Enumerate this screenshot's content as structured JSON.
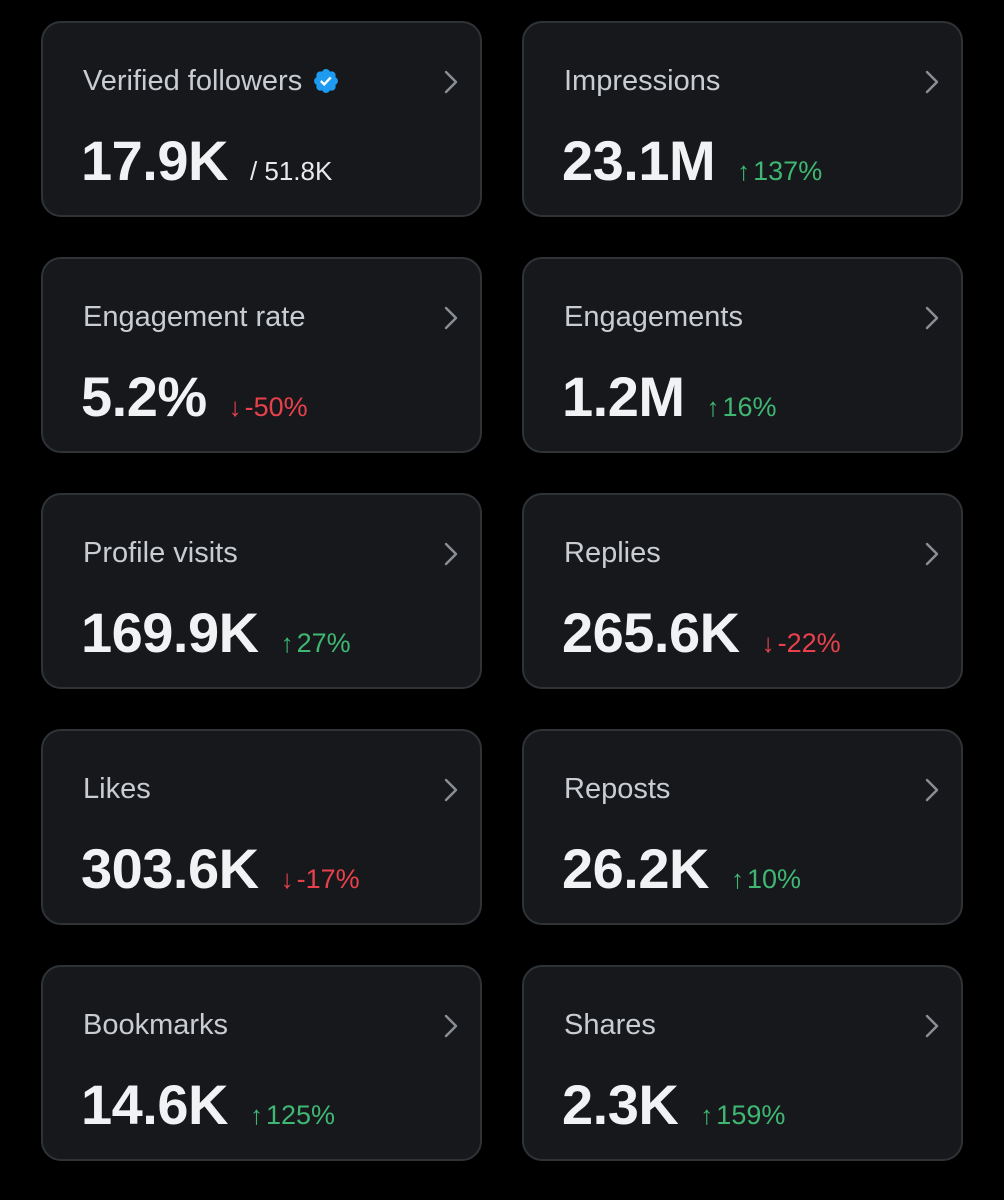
{
  "colors": {
    "background": "#000000",
    "card": "#16181c",
    "border": "#2f3336",
    "positive": "#3fb772",
    "negative": "#e8414b",
    "verified": "#1d9bf0"
  },
  "cards": [
    {
      "title": "Verified followers",
      "value": "17.9K",
      "total": "/ 51.8K",
      "verified": true
    },
    {
      "title": "Impressions",
      "value": "23.1M",
      "change": "137%",
      "direction": "up",
      "arrow": "↑"
    },
    {
      "title": "Engagement rate",
      "value": "5.2%",
      "change": "-50%",
      "direction": "down",
      "arrow": "↓"
    },
    {
      "title": "Engagements",
      "value": "1.2M",
      "change": "16%",
      "direction": "up",
      "arrow": "↑"
    },
    {
      "title": "Profile visits",
      "value": "169.9K",
      "change": "27%",
      "direction": "up",
      "arrow": "↑"
    },
    {
      "title": "Replies",
      "value": "265.6K",
      "change": "-22%",
      "direction": "down",
      "arrow": "↓"
    },
    {
      "title": "Likes",
      "value": "303.6K",
      "change": "-17%",
      "direction": "down",
      "arrow": "↓"
    },
    {
      "title": "Reposts",
      "value": "26.2K",
      "change": "10%",
      "direction": "up",
      "arrow": "↑"
    },
    {
      "title": "Bookmarks",
      "value": "14.6K",
      "change": "125%",
      "direction": "up",
      "arrow": "↑"
    },
    {
      "title": "Shares",
      "value": "2.3K",
      "change": "159%",
      "direction": "up",
      "arrow": "↑"
    }
  ]
}
